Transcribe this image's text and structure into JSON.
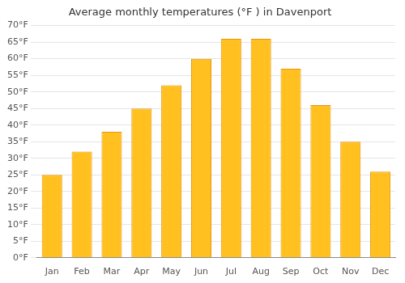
{
  "chart_data": {
    "type": "bar",
    "title": "Average monthly temperatures (°F ) in Davenport",
    "categories": [
      "Jan",
      "Feb",
      "Mar",
      "Apr",
      "May",
      "Jun",
      "Jul",
      "Aug",
      "Sep",
      "Oct",
      "Nov",
      "Dec"
    ],
    "values": [
      25,
      32,
      38,
      45,
      52,
      60,
      66,
      66,
      57,
      46,
      35,
      26
    ],
    "color": "#FFC020",
    "ylim": [
      0,
      70
    ],
    "yticks": [
      {
        "value": 0,
        "label": "0°F"
      },
      {
        "value": 5,
        "label": "5°F"
      },
      {
        "value": 10,
        "label": "10°F"
      },
      {
        "value": 15,
        "label": "15°F"
      },
      {
        "value": 20,
        "label": "20°F"
      },
      {
        "value": 25,
        "label": "25°F"
      },
      {
        "value": 30,
        "label": "30°F"
      },
      {
        "value": 35,
        "label": "35°F"
      },
      {
        "value": 40,
        "label": "40°F"
      },
      {
        "value": 45,
        "label": "45°F"
      },
      {
        "value": 50,
        "label": "50°F"
      },
      {
        "value": 55,
        "label": "55°F"
      },
      {
        "value": 60,
        "label": "60°F"
      },
      {
        "value": 65,
        "label": "65°F"
      },
      {
        "value": 70,
        "label": "70°F"
      }
    ],
    "grid": true
  }
}
